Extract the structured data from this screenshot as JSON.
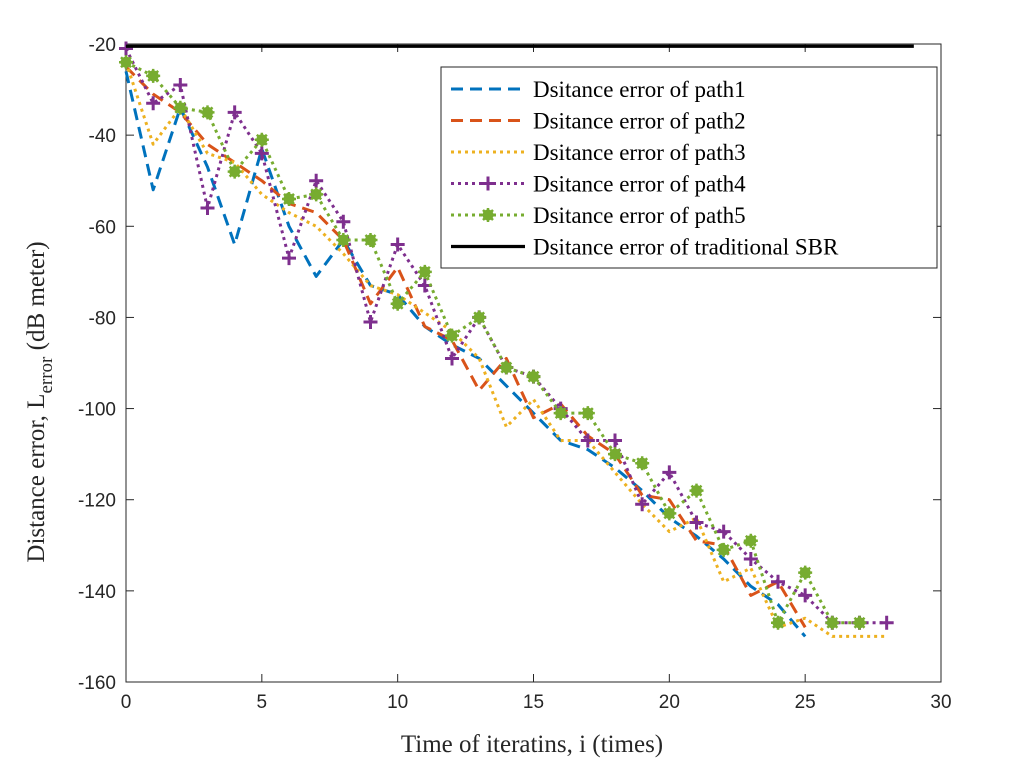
{
  "chart_data": {
    "type": "line",
    "xlabel": "Time of iteratins, i (times)",
    "ylabel_main": "Distance error, L",
    "ylabel_sub": "error",
    "ylabel_unit": " (dB meter)",
    "xlim": [
      0,
      30
    ],
    "ylim": [
      -160,
      -20
    ],
    "xticks": [
      0,
      5,
      10,
      15,
      20,
      25,
      30
    ],
    "yticks": [
      -160,
      -140,
      -120,
      -100,
      -80,
      -60,
      -40,
      -20
    ],
    "grid": false,
    "legend_position": "top-right",
    "series": [
      {
        "name": "Dsitance error of path1",
        "color": "#0072BD",
        "style": "dashed",
        "marker": "none",
        "x": [
          0,
          1,
          2,
          3,
          4,
          5,
          6,
          7,
          8,
          9,
          10,
          11,
          12,
          13,
          14,
          15,
          16,
          17,
          18,
          19,
          20,
          21,
          22,
          23,
          24,
          25
        ],
        "y": [
          -26,
          -52,
          -34,
          -47,
          -64,
          -43,
          -60,
          -71,
          -63,
          -73,
          -75,
          -82,
          -86,
          -89,
          -95,
          -101,
          -107,
          -109,
          -113,
          -118,
          -124,
          -128,
          -133,
          -139,
          -143,
          -150
        ]
      },
      {
        "name": "Dsitance error of path2",
        "color": "#D95319",
        "style": "dashed",
        "marker": "none",
        "x": [
          0,
          1,
          2,
          3,
          4,
          5,
          6,
          7,
          8,
          9,
          10,
          11,
          12,
          13,
          14,
          15,
          16,
          17,
          18,
          19,
          20,
          21,
          22,
          23,
          24,
          25
        ],
        "y": [
          -25,
          -31,
          -35,
          -42,
          -46,
          -50,
          -55,
          -57,
          -63,
          -77,
          -69,
          -82,
          -85,
          -96,
          -89,
          -102,
          -99,
          -106,
          -110,
          -119,
          -120,
          -129,
          -130,
          -141,
          -138,
          -148
        ]
      },
      {
        "name": "Dsitance error of path3",
        "color": "#EDB120",
        "style": "dotted",
        "marker": "none",
        "x": [
          0,
          1,
          2,
          3,
          4,
          5,
          6,
          7,
          8,
          9,
          10,
          11,
          12,
          13,
          14,
          15,
          16,
          17,
          18,
          19,
          20,
          21,
          22,
          23,
          24,
          25,
          26,
          27,
          28
        ],
        "y": [
          -24,
          -42,
          -34,
          -44,
          -46,
          -53,
          -57,
          -60,
          -66,
          -73,
          -75,
          -79,
          -83,
          -89,
          -104,
          -98,
          -107,
          -107,
          -114,
          -121,
          -127,
          -124,
          -138,
          -135,
          -148,
          -146,
          -150,
          -150,
          -150
        ]
      },
      {
        "name": "Dsitance error of path4",
        "color": "#7E2F8E",
        "style": "dotted",
        "marker": "plus",
        "x": [
          0,
          1,
          2,
          3,
          4,
          5,
          6,
          7,
          8,
          9,
          10,
          11,
          12,
          13,
          14,
          15,
          16,
          17,
          18,
          19,
          20,
          21,
          22,
          23,
          24,
          25,
          26,
          27,
          28
        ],
        "y": [
          -21,
          -33,
          -29,
          -56,
          -35,
          -44,
          -67,
          -50,
          -59,
          -81,
          -64,
          -73,
          -89,
          -80,
          -91,
          -93,
          -100,
          -107,
          -107,
          -121,
          -114,
          -125,
          -127,
          -133,
          -138,
          -141,
          -147,
          -147,
          -147
        ]
      },
      {
        "name": "Dsitance error of path5",
        "color": "#77AC30",
        "style": "dotted",
        "marker": "asterisk",
        "x": [
          0,
          1,
          2,
          3,
          4,
          5,
          6,
          7,
          8,
          9,
          10,
          11,
          12,
          13,
          14,
          15,
          16,
          17,
          18,
          19,
          20,
          21,
          22,
          23,
          24,
          25,
          26,
          27
        ],
        "y": [
          -24,
          -27,
          -34,
          -35,
          -48,
          -41,
          -54,
          -53,
          -63,
          -63,
          -77,
          -70,
          -84,
          -80,
          -91,
          -93,
          -101,
          -101,
          -110,
          -112,
          -123,
          -118,
          -131,
          -129,
          -147,
          -136,
          -147,
          -147
        ]
      },
      {
        "name": "Dsitance error of traditional SBR",
        "color": "#000000",
        "style": "solid",
        "marker": "none",
        "x": [
          0,
          29
        ],
        "y": [
          -20.5,
          -20.5
        ]
      }
    ]
  }
}
